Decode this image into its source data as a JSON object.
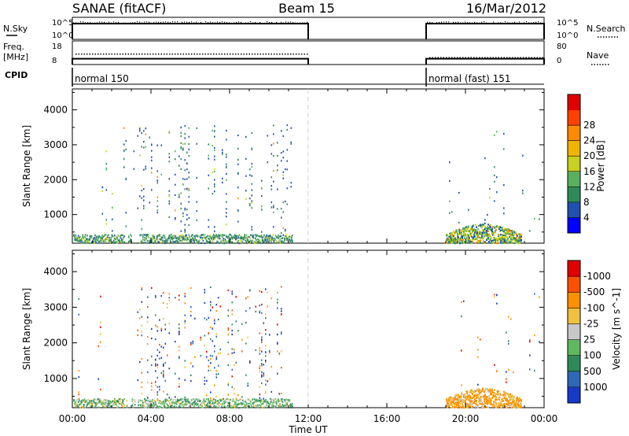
{
  "header": {
    "station": "SANAE (fitACF)",
    "beam": "Beam 15",
    "date": "16/Mar/2012"
  },
  "chart_data": {
    "type": "heatmap",
    "time_axis": {
      "label": "Time UT",
      "range_hours": [
        0,
        24
      ],
      "tick_labels": [
        "00:00",
        "04:00",
        "08:00",
        "12:00",
        "16:00",
        "20:00",
        "00:00"
      ],
      "tick_hours": [
        0,
        4,
        8,
        12,
        16,
        20,
        24
      ]
    },
    "data_gap_hours": [
      12,
      18
    ],
    "top_panels": {
      "nsky": {
        "label": "N.Sky",
        "tick_labels": [
          "10^5",
          "10^0"
        ],
        "right_label": "N.Search",
        "right_tick_labels": [
          "10^5",
          "10^0"
        ],
        "segments": [
          {
            "start": 0,
            "end": 12
          },
          {
            "start": 18,
            "end": 24
          }
        ]
      },
      "freq": {
        "label_line1": "Freq.",
        "label_line2": "[MHz]",
        "tick_labels": [
          "18",
          "8"
        ],
        "right_label": "Nave",
        "right_tick_labels": [
          "80",
          "0"
        ],
        "freq_mhz": [
          {
            "start": 0,
            "end": 12,
            "value": 11
          },
          {
            "start": 18,
            "end": 24,
            "value": 11
          }
        ],
        "nave": [
          {
            "start": 0,
            "end": 12,
            "value": 50
          },
          {
            "start": 18,
            "end": 24,
            "value": 30
          }
        ]
      },
      "cpid": {
        "label": "CPID",
        "segments": [
          {
            "start": 0,
            "end": 12,
            "text": "normal 150"
          },
          {
            "start": 18,
            "end": 24,
            "text": "normal (fast) 151"
          }
        ]
      }
    },
    "power_panel": {
      "ylabel": "Slant Range [km]",
      "ylim": [
        180,
        4600
      ],
      "y_ticks": [
        1000,
        2000,
        3000,
        4000
      ],
      "colorbar": {
        "label": "Power [dB]",
        "ticks": [
          "4",
          "8",
          "12",
          "16",
          "20",
          "24",
          "28"
        ],
        "colors": [
          "#0000ff",
          "#2050b0",
          "#2f8a5a",
          "#58b060",
          "#c8d020",
          "#f0b400",
          "#ff8a00",
          "#ff4000",
          "#e00000"
        ]
      }
    },
    "velocity_panel": {
      "ylabel": "Slant Range [km]",
      "ylim": [
        180,
        4600
      ],
      "y_ticks": [
        1000,
        2000,
        3000,
        4000
      ],
      "colorbar": {
        "label": "Velocity [m s^-1]",
        "ticks": [
          "1000",
          "500",
          "100",
          "25",
          "-25",
          "-100",
          "-500",
          "-1000"
        ],
        "colors": [
          "#1838c8",
          "#3068b8",
          "#2f8a5a",
          "#60b860",
          "#c8c8c8",
          "#f0c040",
          "#ff9000",
          "#ff5000",
          "#e00000"
        ]
      }
    },
    "activity": {
      "morning_hours": [
        0,
        11.2
      ],
      "morning_dense_hours": [
        [
          3.5,
          6
        ],
        [
          6.5,
          8.5
        ],
        [
          9,
          10.8
        ]
      ],
      "evening_hours": [
        18.8,
        24
      ],
      "evening_dense_hours": [
        19,
        22.8
      ]
    }
  }
}
